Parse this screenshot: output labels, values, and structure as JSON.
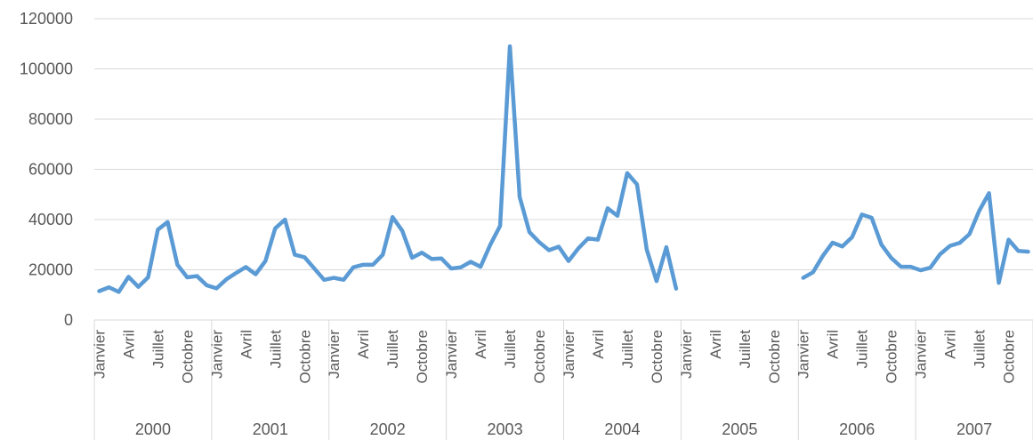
{
  "chart_data": {
    "type": "line",
    "title": "",
    "xlabel": "",
    "ylabel": "",
    "ylim": [
      0,
      120000
    ],
    "y_ticks": [
      "0",
      "20000",
      "40000",
      "60000",
      "80000",
      "100000",
      "120000"
    ],
    "grid": true,
    "legend": "none",
    "color": "#5b9bd5",
    "years": [
      "2000",
      "2001",
      "2002",
      "2003",
      "2004",
      "2005",
      "2006",
      "2007"
    ],
    "month_labels": [
      "Janvier",
      "Avril",
      "Juillet",
      "Octobre"
    ],
    "series": [
      {
        "values": [
          11500,
          13000,
          11200,
          17200,
          13200,
          17000,
          36000,
          39000,
          22000,
          17000,
          17500,
          13800,
          12600,
          16200,
          18700,
          21100,
          18200,
          23500,
          36500,
          40000,
          26000,
          25000,
          20500,
          16000,
          16800,
          16000,
          21000,
          22000,
          22000,
          26000,
          41000,
          35500,
          24800,
          26800,
          24300,
          24500,
          20500,
          21000,
          23200,
          21200,
          30000,
          37500,
          109000,
          49000,
          35000,
          31000,
          27800,
          29200,
          23500,
          28500,
          32500,
          32000,
          44500,
          41500,
          58500,
          54000,
          28000,
          15500,
          29000,
          12500,
          null,
          null,
          null,
          null,
          null,
          null,
          null,
          null,
          null,
          null,
          null,
          null,
          16800,
          19000,
          25500,
          30800,
          29300,
          33000,
          42000,
          40700,
          30000,
          24700,
          21200,
          21200,
          19800,
          20800,
          26200,
          29500,
          30700,
          34200,
          43500,
          50500,
          14800,
          32000,
          27500,
          27200
        ]
      }
    ]
  }
}
